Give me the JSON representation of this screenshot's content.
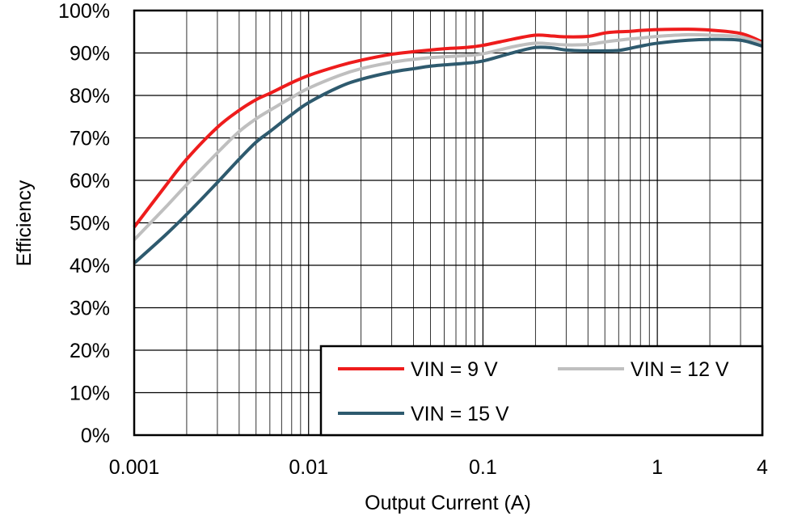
{
  "chart_data": {
    "type": "line",
    "title": "",
    "xlabel": "Output Current (A)",
    "ylabel": "Efficiency",
    "x_scale": "log",
    "xlim": [
      0.001,
      4
    ],
    "ylim": [
      0,
      100
    ],
    "grid": true,
    "legend_position": "bottom-right",
    "x_ticks": [
      {
        "value": 0.001,
        "label": "0.001"
      },
      {
        "value": 0.01,
        "label": "0.01"
      },
      {
        "value": 0.1,
        "label": "0.1"
      },
      {
        "value": 1,
        "label": "1"
      },
      {
        "value": 4,
        "label": "4"
      }
    ],
    "y_ticks": [
      {
        "value": 0,
        "label": "0%"
      },
      {
        "value": 10,
        "label": "10%"
      },
      {
        "value": 20,
        "label": "20%"
      },
      {
        "value": 30,
        "label": "30%"
      },
      {
        "value": 40,
        "label": "40%"
      },
      {
        "value": 50,
        "label": "50%"
      },
      {
        "value": 60,
        "label": "60%"
      },
      {
        "value": 70,
        "label": "70%"
      },
      {
        "value": 80,
        "label": "80%"
      },
      {
        "value": 90,
        "label": "90%"
      },
      {
        "value": 100,
        "label": "100%"
      }
    ],
    "series": [
      {
        "name": "VIN = 9 V",
        "color": "#ee1c1c",
        "x": [
          0.001,
          0.0015,
          0.002,
          0.003,
          0.004,
          0.005,
          0.006,
          0.008,
          0.01,
          0.015,
          0.02,
          0.03,
          0.04,
          0.05,
          0.06,
          0.08,
          0.1,
          0.15,
          0.2,
          0.25,
          0.3,
          0.4,
          0.5,
          0.6,
          0.7,
          0.8,
          1,
          1.5,
          2,
          3,
          4
        ],
        "y": [
          49,
          58.5,
          65,
          72.5,
          76.5,
          79,
          80.5,
          83,
          84.7,
          87,
          88.3,
          89.7,
          90.3,
          90.7,
          91,
          91.3,
          91.8,
          93.3,
          94.2,
          94,
          93.8,
          93.9,
          94.7,
          95,
          95.1,
          95.3,
          95.5,
          95.6,
          95.4,
          94.6,
          92.6
        ]
      },
      {
        "name": "VIN = 12 V",
        "color": "#bfbfbf",
        "x": [
          0.001,
          0.0015,
          0.002,
          0.003,
          0.004,
          0.005,
          0.006,
          0.008,
          0.01,
          0.015,
          0.02,
          0.03,
          0.04,
          0.05,
          0.06,
          0.08,
          0.1,
          0.15,
          0.2,
          0.25,
          0.3,
          0.4,
          0.5,
          0.6,
          0.7,
          0.8,
          1,
          1.5,
          2,
          3,
          4
        ],
        "y": [
          46,
          53.5,
          59,
          66.5,
          71.5,
          74.5,
          76.5,
          79.5,
          81.7,
          84.7,
          86.3,
          87.8,
          88.5,
          88.9,
          89.1,
          89.4,
          89.8,
          91.5,
          92.3,
          92.1,
          91.9,
          92,
          92.6,
          93,
          93.3,
          93.5,
          93.9,
          94.3,
          94.2,
          93.8,
          92.2
        ]
      },
      {
        "name": "VIN = 15 V",
        "color": "#2e5a6e",
        "x": [
          0.001,
          0.0015,
          0.002,
          0.003,
          0.004,
          0.005,
          0.006,
          0.008,
          0.01,
          0.015,
          0.02,
          0.03,
          0.04,
          0.05,
          0.06,
          0.08,
          0.1,
          0.15,
          0.2,
          0.25,
          0.3,
          0.4,
          0.5,
          0.6,
          0.7,
          0.8,
          1,
          1.5,
          2,
          3,
          4
        ],
        "y": [
          40.5,
          47,
          52,
          59.5,
          65,
          69,
          71.5,
          75.5,
          78.3,
          82,
          83.8,
          85.5,
          86.3,
          86.9,
          87.2,
          87.6,
          88.1,
          90.1,
          91.3,
          91.2,
          90.7,
          90.5,
          90.5,
          90.6,
          91.1,
          91.6,
          92.3,
          93,
          93.2,
          93,
          91.6
        ]
      }
    ]
  }
}
